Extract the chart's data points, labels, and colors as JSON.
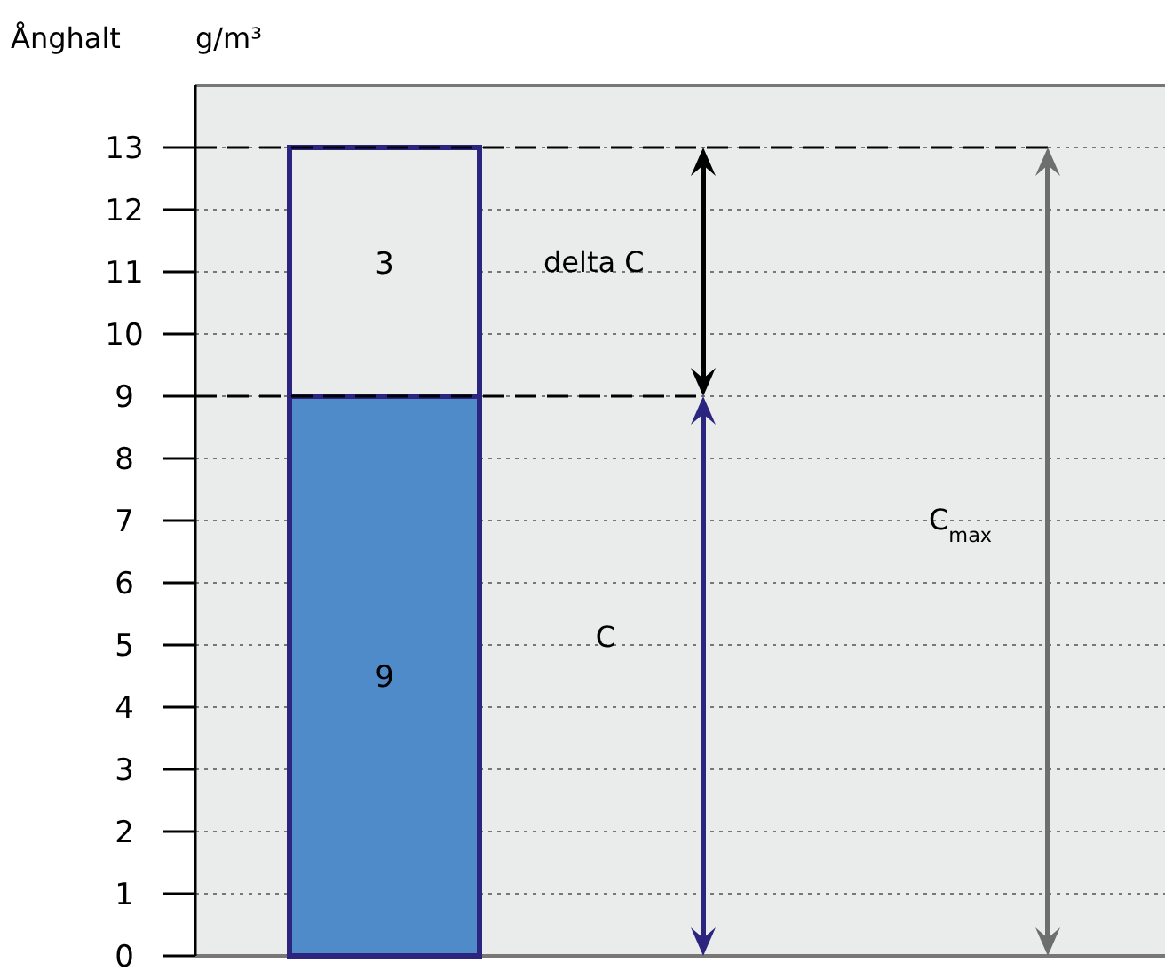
{
  "chart_data": {
    "type": "bar",
    "stacked": true,
    "ylabel": "Ånghalt",
    "categories": [
      null
    ],
    "series": [
      {
        "color": "#4f8bc9",
        "values": [
          9
        ],
        "value_labels": [
          "9"
        ]
      },
      {
        "color": "#eaeceb",
        "values": [
          4
        ]
      }
    ],
    "ylim": [
      0,
      14
    ],
    "yticks": [
      0,
      1,
      2,
      3,
      4,
      5,
      6,
      7,
      8,
      9,
      10,
      11,
      12,
      13
    ],
    "grid": "y",
    "ref_lines": [
      {
        "axis": "y",
        "value": 13,
        "line_style": "dashed",
        "color": "#000000"
      },
      {
        "axis": "y",
        "value": 9,
        "line_style": "dashed",
        "color": "#000000"
      }
    ],
    "annotations": [
      "g/m³",
      "3",
      "delta C",
      "C",
      "C$_{max}$"
    ]
  }
}
